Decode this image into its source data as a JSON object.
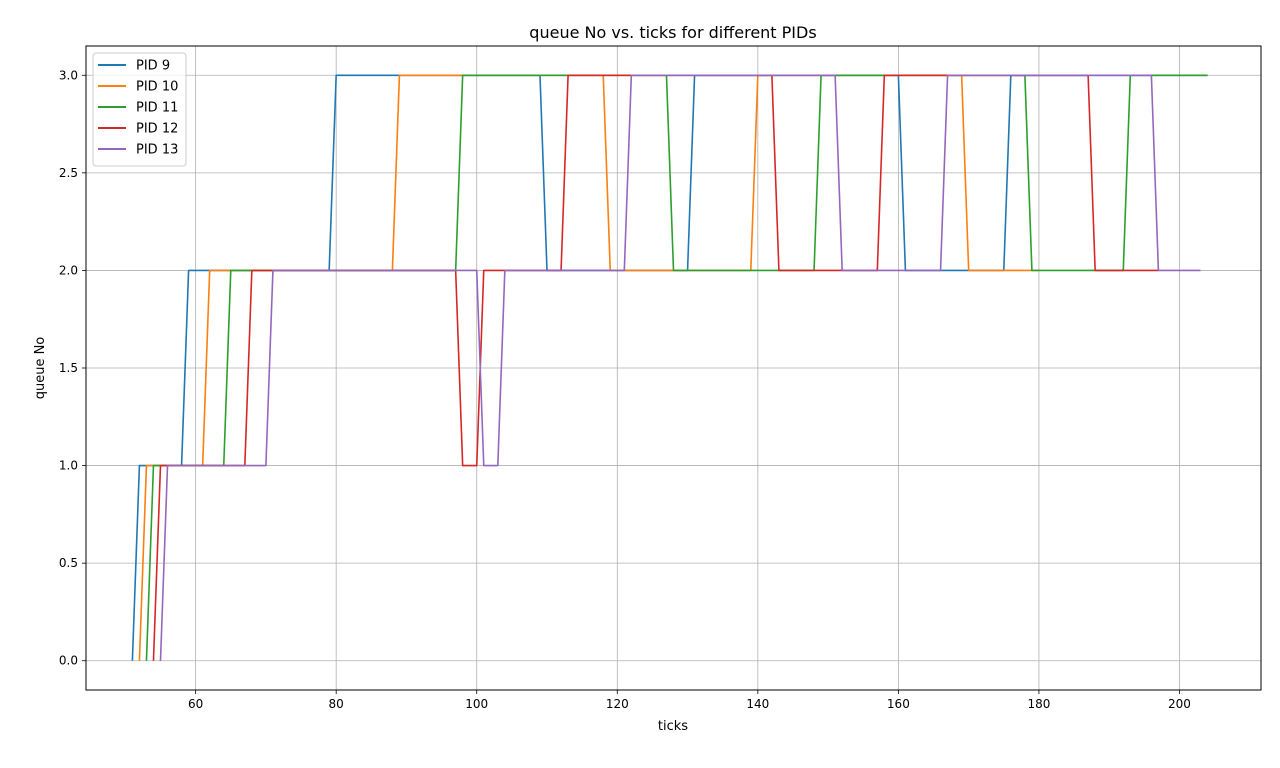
{
  "chart_data": {
    "type": "line",
    "title": "queue No vs. ticks for different PIDs",
    "xlabel": "ticks",
    "ylabel": "queue No",
    "xlim": [
      44.4,
      211.6
    ],
    "ylim": [
      -0.15,
      3.15
    ],
    "xticks": [
      60,
      80,
      100,
      120,
      140,
      160,
      180,
      200
    ],
    "yticks": [
      0.0,
      0.5,
      1.0,
      1.5,
      2.0,
      2.5,
      3.0
    ],
    "xtick_labels": [
      "60",
      "80",
      "100",
      "120",
      "140",
      "160",
      "180",
      "200"
    ],
    "ytick_labels": [
      "0.0",
      "0.5",
      "1.0",
      "1.5",
      "2.0",
      "2.5",
      "3.0"
    ],
    "grid": true,
    "legend_position": "top-left",
    "series": [
      {
        "name": "PID 9",
        "color": "#1f77b4",
        "points": [
          [
            51,
            0
          ],
          [
            52,
            1
          ],
          [
            58,
            1
          ],
          [
            59,
            2
          ],
          [
            79,
            2
          ],
          [
            80,
            3
          ],
          [
            109,
            3
          ],
          [
            110,
            2
          ],
          [
            130,
            2
          ],
          [
            131,
            3
          ],
          [
            160,
            3
          ],
          [
            161,
            2
          ],
          [
            175,
            2
          ],
          [
            176,
            3
          ],
          [
            204,
            3
          ]
        ]
      },
      {
        "name": "PID 10",
        "color": "#ff7f0e",
        "points": [
          [
            52,
            0
          ],
          [
            53,
            1
          ],
          [
            61,
            1
          ],
          [
            62,
            2
          ],
          [
            88,
            2
          ],
          [
            89,
            3
          ],
          [
            118,
            3
          ],
          [
            119,
            2
          ],
          [
            139,
            2
          ],
          [
            140,
            3
          ],
          [
            169,
            3
          ],
          [
            170,
            2
          ],
          [
            180,
            2
          ]
        ]
      },
      {
        "name": "PID 11",
        "color": "#2ca02c",
        "points": [
          [
            53,
            0
          ],
          [
            54,
            1
          ],
          [
            64,
            1
          ],
          [
            65,
            2
          ],
          [
            97,
            2
          ],
          [
            98,
            3
          ],
          [
            127,
            3
          ],
          [
            128,
            2
          ],
          [
            148,
            2
          ],
          [
            149,
            3
          ],
          [
            178,
            3
          ],
          [
            179,
            2
          ],
          [
            192,
            2
          ],
          [
            193,
            3
          ],
          [
            204,
            3
          ]
        ]
      },
      {
        "name": "PID 12",
        "color": "#d62728",
        "points": [
          [
            54,
            0
          ],
          [
            55,
            1
          ],
          [
            67,
            1
          ],
          [
            68,
            2
          ],
          [
            97,
            2
          ],
          [
            98,
            1
          ],
          [
            100,
            1
          ],
          [
            101,
            2
          ],
          [
            112,
            2
          ],
          [
            113,
            3
          ],
          [
            142,
            3
          ],
          [
            143,
            2
          ],
          [
            157,
            2
          ],
          [
            158,
            3
          ],
          [
            187,
            3
          ],
          [
            188,
            2
          ],
          [
            197,
            2
          ]
        ]
      },
      {
        "name": "PID 13",
        "color": "#9467bd",
        "points": [
          [
            55,
            0
          ],
          [
            56,
            1
          ],
          [
            70,
            1
          ],
          [
            71,
            2
          ],
          [
            100,
            2
          ],
          [
            101,
            1
          ],
          [
            103,
            1
          ],
          [
            104,
            2
          ],
          [
            121,
            2
          ],
          [
            122,
            3
          ],
          [
            151,
            3
          ],
          [
            152,
            2
          ],
          [
            166,
            2
          ],
          [
            167,
            3
          ],
          [
            196,
            3
          ],
          [
            197,
            2
          ],
          [
            203,
            2
          ]
        ]
      }
    ]
  }
}
